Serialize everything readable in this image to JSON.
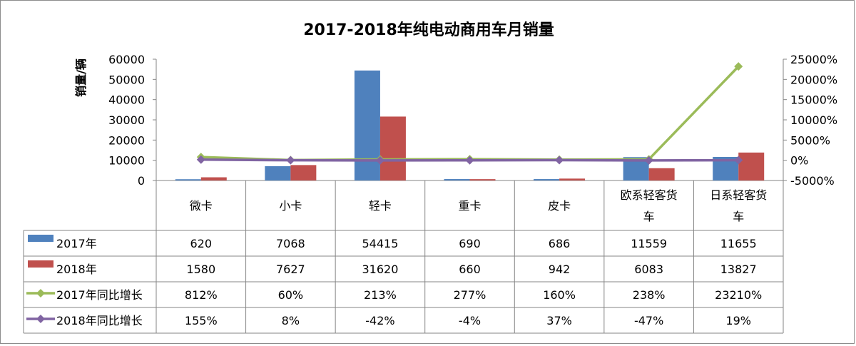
{
  "chart_data": {
    "type": "bar",
    "title": "2017-2018年纯电动商用车月销量",
    "ylabel": "销量/辆",
    "categories": [
      "微卡",
      "小卡",
      "轻卡",
      "重卡",
      "皮卡",
      "欧系轻客货车",
      "日系轻客货车"
    ],
    "category_lines": [
      [
        "微卡"
      ],
      [
        "小卡"
      ],
      [
        "轻卡"
      ],
      [
        "重卡"
      ],
      [
        "皮卡"
      ],
      [
        "欧系轻客货",
        "车"
      ],
      [
        "日系轻客货",
        "车"
      ]
    ],
    "ylim": [
      0,
      60000
    ],
    "y_ticks": [
      "60000",
      "50000",
      "40000",
      "30000",
      "20000",
      "10000",
      "0"
    ],
    "y2lim": [
      -5000,
      25000
    ],
    "y2_ticks": [
      "25000%",
      "20000%",
      "15000%",
      "10000%",
      "5000%",
      "0%",
      "-5000%"
    ],
    "grid": false,
    "legend": "data-table",
    "series": [
      {
        "name": "2017年",
        "kind": "bar",
        "axis": "left",
        "color": "#4f81bd",
        "values": [
          620,
          7068,
          54415,
          690,
          686,
          11559,
          11655
        ],
        "labels": [
          "620",
          "7068",
          "54415",
          "690",
          "686",
          "11559",
          "11655"
        ]
      },
      {
        "name": "2018年",
        "kind": "bar",
        "axis": "left",
        "color": "#c0504d",
        "values": [
          1580,
          7627,
          31620,
          660,
          942,
          6083,
          13827
        ],
        "labels": [
          "1580",
          "7627",
          "31620",
          "660",
          "942",
          "6083",
          "13827"
        ]
      },
      {
        "name": "2017年同比增长",
        "kind": "line",
        "axis": "right",
        "color": "#9bbb59",
        "values": [
          812,
          60,
          213,
          277,
          160,
          238,
          23210
        ],
        "labels": [
          "812%",
          "60%",
          "213%",
          "277%",
          "160%",
          "238%",
          "23210%"
        ]
      },
      {
        "name": "2018年同比增长",
        "kind": "line",
        "axis": "right",
        "color": "#8064a2",
        "values": [
          155,
          8,
          -42,
          -4,
          37,
          -47,
          19
        ],
        "labels": [
          "155%",
          "8%",
          "-42%",
          "-4%",
          "37%",
          "-47%",
          "19%"
        ]
      }
    ]
  }
}
